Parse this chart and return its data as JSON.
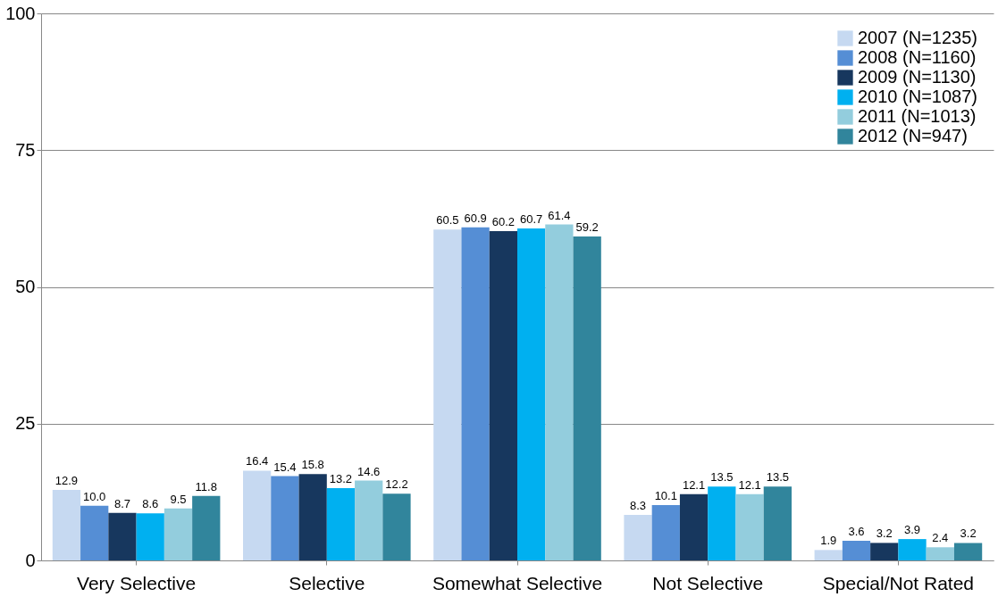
{
  "chart_data": {
    "type": "bar",
    "categories": [
      "Very Selective",
      "Selective",
      "Somewhat Selective",
      "Not Selective",
      "Special/Not Rated"
    ],
    "series": [
      {
        "name": "2007 (N=1235)",
        "color": "#c6d9f1",
        "values": [
          12.9,
          16.4,
          60.5,
          8.3,
          1.9
        ],
        "value_labels": [
          "12.9",
          "16.4",
          "60.5",
          "8.3",
          "1.9"
        ]
      },
      {
        "name": "2008 (N=1160)",
        "color": "#558ed5",
        "values": [
          10.0,
          15.4,
          60.9,
          10.1,
          3.6
        ],
        "value_labels": [
          "10.0",
          "15.4",
          "60.9",
          "10.1",
          "3.6"
        ]
      },
      {
        "name": "2009 (N=1130)",
        "color": "#17375e",
        "values": [
          8.7,
          15.8,
          60.2,
          12.1,
          3.2
        ],
        "value_labels": [
          "8.7",
          "15.8",
          "60.2",
          "12.1",
          "3.2"
        ]
      },
      {
        "name": "2010 (N=1087)",
        "color": "#00b0f0",
        "values": [
          8.6,
          13.2,
          60.7,
          13.5,
          3.9
        ],
        "value_labels": [
          "8.6",
          "13.2",
          "60.7",
          "13.5",
          "3.9"
        ]
      },
      {
        "name": "2011 (N=1013)",
        "color": "#93cddd",
        "values": [
          9.5,
          14.6,
          61.4,
          12.1,
          2.4
        ],
        "value_labels": [
          "9.5",
          "14.6",
          "61.4",
          "12.1",
          "2.4"
        ]
      },
      {
        "name": "2012 (N=947)",
        "color": "#31859c",
        "values": [
          11.8,
          12.2,
          59.2,
          13.5,
          3.2
        ],
        "value_labels": [
          "11.8",
          "12.2",
          "59.2",
          "13.5",
          "3.2"
        ]
      }
    ],
    "ylim": [
      0,
      100
    ],
    "yticks": [
      0,
      25,
      50,
      75,
      100
    ],
    "grid": "y",
    "legend": "top right"
  }
}
